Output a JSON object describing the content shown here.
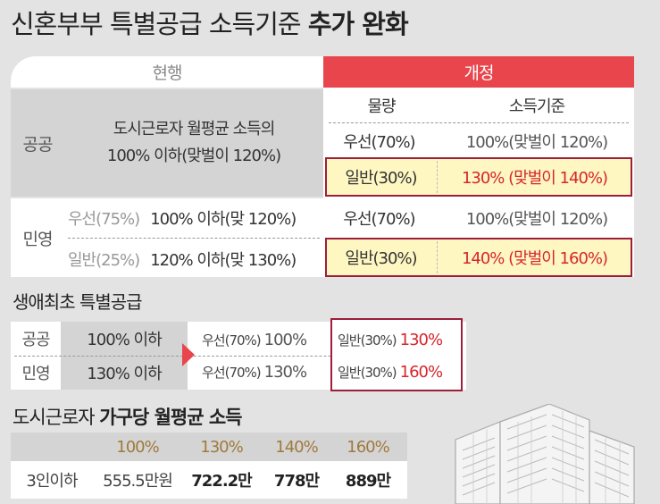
{
  "title_regular": "신혼부부 특별공급 소득기준",
  "title_bold": "추가 완화",
  "table": {
    "header_current": "현행",
    "header_revised": "개정",
    "col_volume": "물량",
    "col_income": "소득기준",
    "public_label": "공공",
    "public_current_line1": "도시근로자 월평균 소득의",
    "public_current_line2": "100% 이하(맞벌이 120%)",
    "public_rows": [
      {
        "volume": "우선(70%)",
        "income": "100%(맞벌이 120%)"
      },
      {
        "volume": "일반(30%)",
        "income": "130% (맞벌이 140%)"
      }
    ],
    "private_label": "민영",
    "private_current": [
      {
        "type": "우선(75%)",
        "value": "100% 이하(맞 120%)"
      },
      {
        "type": "일반(25%)",
        "value": "120% 이하(맞 130%)"
      }
    ],
    "private_rows": [
      {
        "volume": "우선(70%)",
        "income": "100%(맞벌이 120%)"
      },
      {
        "volume": "일반(30%)",
        "income": "140% (맞벌이 160%)"
      }
    ]
  },
  "first_home": {
    "title": "생애최초 특별공급",
    "rows": [
      {
        "label": "공공",
        "current": "100% 이하",
        "priority_label": "우선(70%)",
        "priority_value": "100%",
        "general_label": "일반(30%)",
        "general_value": "130%"
      },
      {
        "label": "민영",
        "current": "130% 이하",
        "priority_label": "우선(70%)",
        "priority_value": "130%",
        "general_label": "일반(30%)",
        "general_value": "160%"
      }
    ]
  },
  "income_table": {
    "title_regular": "도시근로자",
    "title_bold": "가구당 월평균 소득",
    "headers": [
      "100%",
      "130%",
      "140%",
      "160%"
    ],
    "row_label": "3인이하",
    "values": [
      "555.5만원",
      "722.2만",
      "778만",
      "889만"
    ]
  },
  "colors": {
    "accent_red": "#e8454c",
    "highlight": "#fff7c2",
    "border_red": "#9e1e3a",
    "gold": "#a07a3c"
  },
  "icons": [
    "building-illustration",
    "arrow-right-icon"
  ]
}
